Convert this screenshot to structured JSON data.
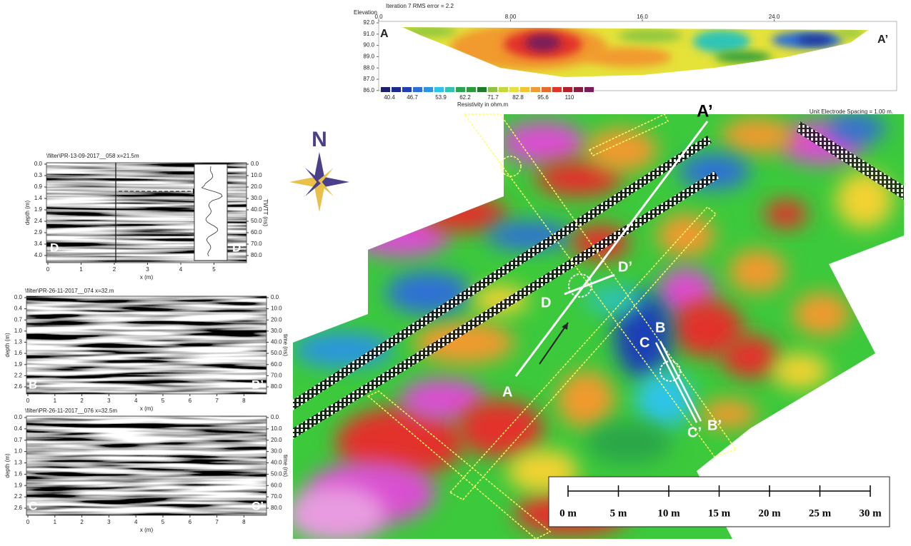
{
  "ert_section": {
    "title": "Iteration 7 RMS error = 2.2",
    "elevation_label": "Elevation",
    "x_ticks": [
      "0.0",
      "8.00",
      "16.0",
      "24.0"
    ],
    "y_ticks": [
      "92.0",
      "91.0",
      "90.0",
      "89.0",
      "88.0",
      "87.0",
      "86.0"
    ],
    "start_label": "A",
    "end_label": "A’",
    "legend_labels": [
      "40.4",
      "46.7",
      "53.9",
      "62.2",
      "71.7",
      "82.8",
      "95.6",
      "110"
    ],
    "legend_title": "Resistivity in ohm.m",
    "spacing_note": "Unit Electrode Spacing = 1.00 m."
  },
  "gpr_panels": [
    {
      "title": "\\filter\\PR-13-09-2017__058   x=21.5m",
      "depth_ticks": [
        "0.0",
        "0.3",
        "0.9",
        "1.4",
        "1.9",
        "2.4",
        "2.9",
        "3.4",
        "4.0"
      ],
      "depth_label": "depth (m)",
      "time_ticks": [
        "0.0",
        "10.0",
        "20.0",
        "30.0",
        "40.0",
        "50.0",
        "60.0",
        "70.0",
        "80.0"
      ],
      "time_label": "TWTT (ns)",
      "x_ticks": [
        "0",
        "1",
        "2",
        "3",
        "4",
        "5"
      ],
      "x_label": "x (m)",
      "start_label": "D",
      "end_label": "D’"
    },
    {
      "title": "\\filter\\PR-26-11-2017__074   x=32.m",
      "depth_ticks": [
        "0.0",
        "0.4",
        "0.7",
        "1.0",
        "1.3",
        "1.6",
        "1.9",
        "2.2",
        "2.6"
      ],
      "depth_label": "depth (m)",
      "time_ticks": [
        "0.0",
        "10.0",
        "20.0",
        "30.0",
        "40.0",
        "50.0",
        "60.0",
        "70.0",
        "80.0"
      ],
      "time_label": "time (ns)",
      "x_ticks": [
        "0",
        "1",
        "2",
        "3",
        "4",
        "5",
        "6",
        "7",
        "8"
      ],
      "x_label": "x (m)",
      "start_label": "B",
      "end_label": "B’"
    },
    {
      "title": "\\filter\\PR-26-11-2017__076   x=32.5m",
      "depth_ticks": [
        "0.0",
        "0.4",
        "0.7",
        "1.0",
        "1.3",
        "1.6",
        "1.9",
        "2.2",
        "2.6"
      ],
      "depth_label": "depth (m)",
      "time_ticks": [
        "0.0",
        "10.0",
        "20.0",
        "30.0",
        "40.0",
        "50.0",
        "60.0",
        "70.0",
        "80.0"
      ],
      "time_label": "time (ns)",
      "x_ticks": [
        "0",
        "1",
        "2",
        "3",
        "4",
        "5",
        "6",
        "7",
        "8"
      ],
      "x_label": "x (m)",
      "start_label": "C",
      "end_label": "C’"
    }
  ],
  "map": {
    "north": "N",
    "point_labels": [
      "A’",
      "D’",
      "D",
      "B",
      "C",
      "A",
      "C’",
      "B’"
    ],
    "scale_labels": [
      "0 m",
      "5 m",
      "10 m",
      "15 m",
      "20 m",
      "25 m",
      "30 m"
    ]
  }
}
